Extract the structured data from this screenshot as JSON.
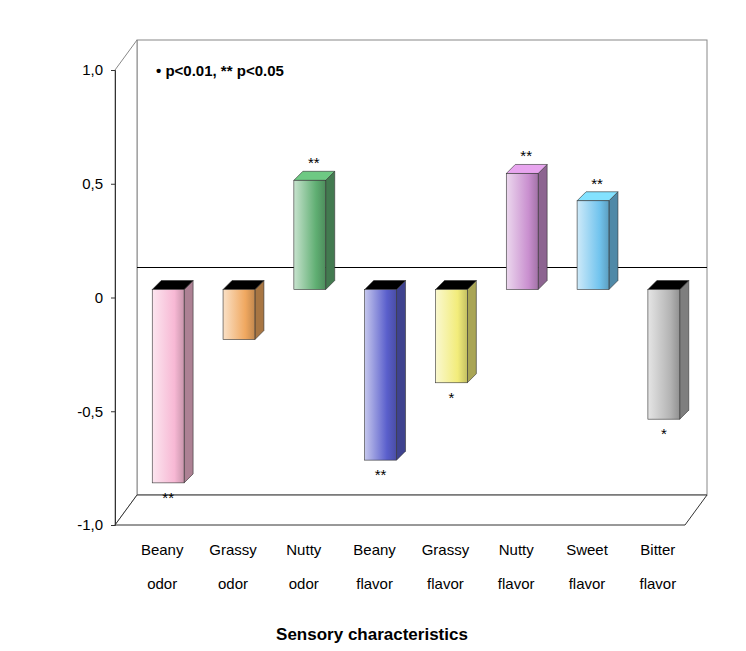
{
  "chart_data": {
    "type": "bar",
    "x_label": "Sensory characteristics",
    "note": "• p<0.01, ** p<0.05",
    "categories": [
      "Beany odor",
      "Grassy odor",
      "Nutty odor",
      "Beany flavor",
      "Grassy flavor",
      "Nutty flavor",
      "Sweet flavor",
      "Bitter flavor"
    ],
    "values": [
      -0.85,
      -0.22,
      0.48,
      -0.75,
      -0.41,
      0.51,
      0.39,
      -0.57
    ],
    "annotations": [
      "**",
      null,
      "**",
      "**",
      "*",
      "**",
      "**",
      "*"
    ],
    "colors": [
      "#f7b8d4",
      "#f0a860",
      "#5fae72",
      "#5a5fcc",
      "#f2ec7a",
      "#c98fcf",
      "#72c4ee",
      "#b4b4b4"
    ],
    "ylim": [
      -1,
      1
    ],
    "yticks": [
      {
        "value": -1,
        "label": "-1,0"
      },
      {
        "value": -0.5,
        "label": "-0,5"
      },
      {
        "value": 0,
        "label": "0"
      },
      {
        "value": 0.5,
        "label": "0,5"
      },
      {
        "value": 1,
        "label": "1,0"
      }
    ],
    "grid": false
  }
}
